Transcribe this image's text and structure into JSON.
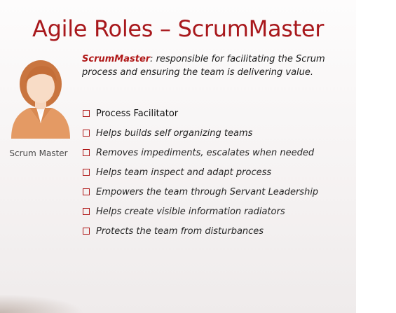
{
  "slide": {
    "title": "Agile Roles – ScrumMaster",
    "avatar_caption": "Scrum Master",
    "intro": {
      "term": "ScrumMaster",
      "text": ": responsible for facilitating the Scrum process and ensuring the team is delivering value."
    },
    "bullets": [
      {
        "label": "Process Facilitator"
      },
      {
        "label": "Helps builds self organizing teams"
      },
      {
        "label": "Removes impediments, escalates when needed"
      },
      {
        "label": "Helps team inspect and adapt process"
      },
      {
        "label": "Empowers the team through Servant Leadership"
      },
      {
        "label": "Helps create visible information radiators"
      },
      {
        "label": "Protects the team from disturbances"
      }
    ]
  },
  "colors": {
    "accent": "#a8181c",
    "avatar_orange": "#e9a36f",
    "text": "#262626"
  },
  "icons": {
    "avatar": "person-icon",
    "bullet": "checkbox-square-icon"
  }
}
